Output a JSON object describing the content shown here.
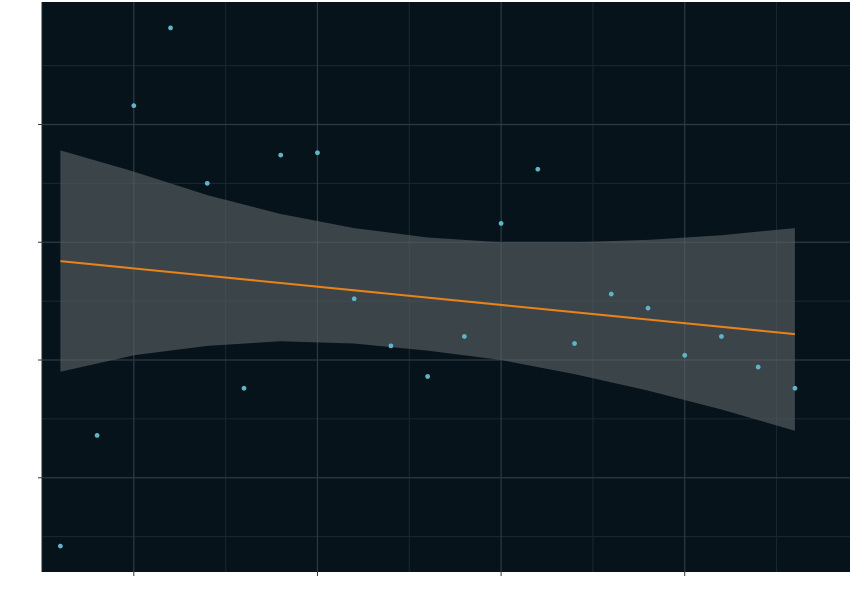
{
  "colors": {
    "panel_bg": "#07131b",
    "grid_major": "#2e3a43",
    "grid_minor": "#1a2830",
    "ribbon": "#5b6266",
    "trend": "#e8821a",
    "points": "#5fb4c9"
  },
  "chart_data": {
    "type": "scatter",
    "title": "",
    "xlabel": "",
    "ylabel": "",
    "grid": true,
    "legend": "none",
    "xlim": [
      0.5,
      22.5
    ],
    "ylim": [
      2,
      26.2
    ],
    "x_major_ticks": [
      3,
      8,
      13,
      18
    ],
    "x_minor_ticks": [
      0.5,
      5.5,
      10.5,
      15.5,
      20.5
    ],
    "y_major_ticks": [
      6,
      11,
      16,
      21
    ],
    "y_minor_ticks": [
      3.5,
      8.5,
      13.5,
      18.5,
      23.5
    ],
    "series": [
      {
        "values": [
          {
            "x": 1,
            "y": 3.1
          },
          {
            "x": 2,
            "y": 7.8
          },
          {
            "x": 3,
            "y": 21.8
          },
          {
            "x": 4,
            "y": 25.1
          },
          {
            "x": 5,
            "y": 18.5
          },
          {
            "x": 6,
            "y": 9.8
          },
          {
            "x": 7,
            "y": 19.7
          },
          {
            "x": 8,
            "y": 19.8
          },
          {
            "x": 9,
            "y": 13.6
          },
          {
            "x": 10,
            "y": 11.6
          },
          {
            "x": 11,
            "y": 10.3
          },
          {
            "x": 12,
            "y": 12.0
          },
          {
            "x": 13,
            "y": 16.8
          },
          {
            "x": 14,
            "y": 19.1
          },
          {
            "x": 15,
            "y": 11.7
          },
          {
            "x": 16,
            "y": 13.8
          },
          {
            "x": 17,
            "y": 13.2
          },
          {
            "x": 18,
            "y": 11.2
          },
          {
            "x": 19,
            "y": 12.0
          },
          {
            "x": 20,
            "y": 10.7
          },
          {
            "x": 21,
            "y": 9.8
          }
        ]
      }
    ],
    "trend_line": {
      "method": "linear",
      "x": [
        1,
        21
      ],
      "y": [
        15.2,
        12.1
      ]
    },
    "confidence_band": {
      "x": [
        1,
        3,
        5,
        7,
        9,
        11,
        13,
        15,
        17,
        19,
        21
      ],
      "lower": [
        10.5,
        11.2,
        11.6,
        11.8,
        11.7,
        11.4,
        11.0,
        10.4,
        9.7,
        8.9,
        8.0
      ],
      "upper": [
        19.9,
        19.0,
        18.0,
        17.2,
        16.6,
        16.2,
        16.0,
        16.0,
        16.1,
        16.3,
        16.6
      ]
    }
  }
}
